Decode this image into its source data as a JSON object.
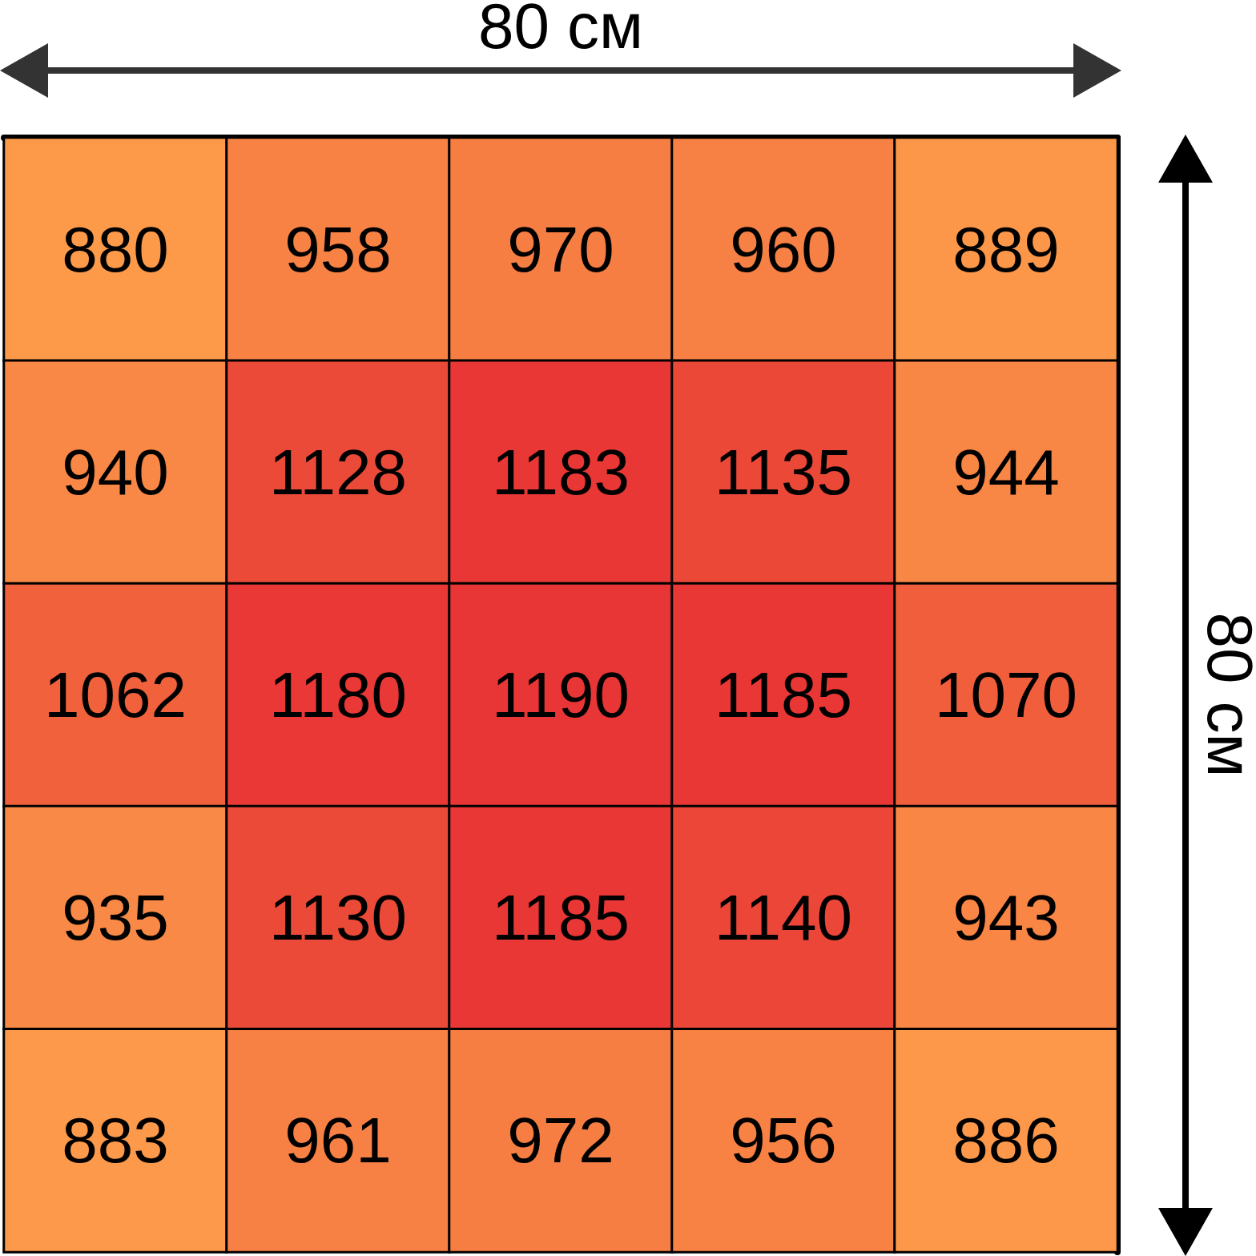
{
  "chart_data": {
    "type": "heatmap",
    "xlabel": "80 см",
    "ylabel": "80 см",
    "data_labels": true,
    "categories": [
      null,
      null,
      null,
      null,
      null
    ],
    "y_categories": [
      null,
      null,
      null,
      null,
      null
    ],
    "cells": [
      [
        880,
        958,
        970,
        960,
        889
      ],
      [
        940,
        1128,
        1183,
        1135,
        944
      ],
      [
        1062,
        1180,
        1190,
        1185,
        1070
      ],
      [
        935,
        1130,
        1185,
        1140,
        943
      ],
      [
        883,
        961,
        972,
        956,
        886
      ]
    ]
  }
}
